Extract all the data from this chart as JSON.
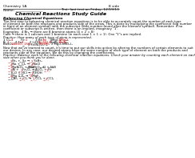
{
  "bg_color": "#ffffff",
  "header_left": "Chemistry 1A",
  "header_right": "8 side",
  "header_name": "Name: _______________",
  "header_date": "Test: last test on Friday, 12/19/13",
  "title": "Chemical Reactions Study Guide",
  "section1_title": "Balancing Chemical Equations",
  "body_text": [
    "The first step to balancing chemical reaction equations is to be able to accurately count the number of each type",
    "of element on both the reactants and products side of the arrow. This is done by multiplying the coefficient (big number",
    "in front of an element symbol) with the subscript (little number found after the element symbol). Remember: if no",
    "coefficient or subscript is written, then there is an implied, imaginary \"1\"."
  ],
  "example_text": [
    "Examples:  4 Br₂ → there are 8 bromine atoms (4 × 2 = 8)",
    "CaBr → there is 1 calcium and 1 bromine (in each case 1 × 1 = 1). One \"1\"s are implied."
  ],
  "practice1_label": "Practice: How many of each type of atom is represented.",
  "transition_text": [
    "Now that we've learned to count, it's time to put our skills into action by altering the numbers of certain elements to suit",
    "our desires. In any case, our desired atoms have the same number of each type of element on both the products and",
    "reactants side of the equation. We do this by changing the coefficients."
  ],
  "practice2_label": "Practice: Balance each of the following chemical reaction equations. Check your answer by counting each element on each",
  "practice2_label2": "side when you think you're done.",
  "red_color": "#cc0000",
  "black_color": "#000000",
  "fs_tiny": 2.8,
  "fs_small": 3.2,
  "fs_title": 4.5
}
